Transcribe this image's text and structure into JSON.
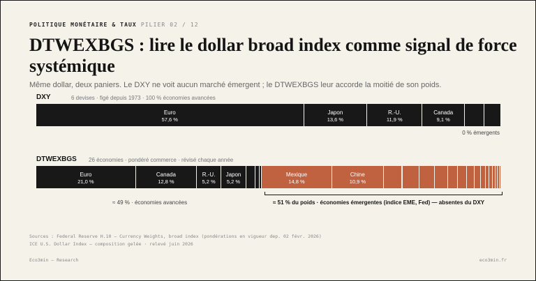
{
  "header": {
    "kicker": "POLITIQUE MONÉTAIRE & TAUX",
    "pillar": "PILIER 02 / 12",
    "title": "DTWEXBGS : lire le dollar broad index comme signal de force systémique",
    "subtitle": "Même dollar, deux paniers. Le DXY ne voit aucun marché émergent ; le DTWEXBGS leur accorde la moitié de son poids."
  },
  "colors": {
    "advanced": "#181818",
    "emerging": "#c0623f",
    "background": "#f5f2ea"
  },
  "chart_data": [
    {
      "type": "bar",
      "subtype": "stacked-100",
      "name": "DXY",
      "meta": "6 devises · figé depuis 1973 · 100 % économies avancées",
      "segments": [
        {
          "name": "Euro",
          "value": 57.6,
          "label": "57,6 %",
          "group": "advanced"
        },
        {
          "name": "Japon",
          "value": 13.6,
          "label": "13,6 %",
          "group": "advanced"
        },
        {
          "name": "R.-U.",
          "value": 11.9,
          "label": "11,9 %",
          "group": "advanced"
        },
        {
          "name": "Canada",
          "value": 9.1,
          "label": "9,1 %",
          "group": "advanced"
        },
        {
          "name": "",
          "value": 4.2,
          "label": "",
          "group": "advanced"
        },
        {
          "name": "",
          "value": 3.6,
          "label": "",
          "group": "advanced"
        }
      ],
      "annotation": "0 % émergents"
    },
    {
      "type": "bar",
      "subtype": "stacked-100",
      "name": "DTWEXBGS",
      "meta": "26 économies · pondéré commerce · révisé chaque année",
      "segments": [
        {
          "name": "Euro",
          "value": 21.0,
          "label": "21,0 %",
          "group": "advanced"
        },
        {
          "name": "Canada",
          "value": 12.8,
          "label": "12,8 %",
          "group": "advanced"
        },
        {
          "name": "R.-U.",
          "value": 5.2,
          "label": "5,2 %",
          "group": "advanced"
        },
        {
          "name": "Japon",
          "value": 5.2,
          "label": "5,2 %",
          "group": "advanced"
        },
        {
          "name": "",
          "value": 1.9,
          "label": "",
          "group": "advanced"
        },
        {
          "name": "",
          "value": 1.0,
          "label": "",
          "group": "advanced"
        },
        {
          "name": "",
          "value": 0.4,
          "label": "",
          "group": "advanced"
        },
        {
          "name": "Mexique",
          "value": 14.8,
          "label": "14,8 %",
          "group": "emerging"
        },
        {
          "name": "Chine",
          "value": 10.9,
          "label": "10,9 %",
          "group": "emerging"
        },
        {
          "name": "",
          "value": 3.9,
          "label": "",
          "group": "emerging"
        },
        {
          "name": "",
          "value": 3.6,
          "label": "",
          "group": "emerging"
        },
        {
          "name": "",
          "value": 3.3,
          "label": "",
          "group": "emerging"
        },
        {
          "name": "",
          "value": 2.7,
          "label": "",
          "group": "emerging"
        },
        {
          "name": "",
          "value": 2.1,
          "label": "",
          "group": "emerging"
        },
        {
          "name": "",
          "value": 1.9,
          "label": "",
          "group": "emerging"
        },
        {
          "name": "",
          "value": 1.6,
          "label": "",
          "group": "emerging"
        },
        {
          "name": "",
          "value": 1.3,
          "label": "",
          "group": "emerging"
        },
        {
          "name": "",
          "value": 1.0,
          "label": "",
          "group": "emerging"
        },
        {
          "name": "",
          "value": 0.8,
          "label": "",
          "group": "emerging"
        },
        {
          "name": "",
          "value": 0.7,
          "label": "",
          "group": "emerging"
        },
        {
          "name": "",
          "value": 0.6,
          "label": "",
          "group": "emerging"
        },
        {
          "name": "",
          "value": 0.5,
          "label": "",
          "group": "emerging"
        },
        {
          "name": "",
          "value": 0.4,
          "label": "",
          "group": "emerging"
        },
        {
          "name": "",
          "value": 0.3,
          "label": "",
          "group": "emerging"
        }
      ],
      "annotation_advanced": "≈ 49 % · économies avancées",
      "annotation_emerging": "≈ 51 % du poids · économies émergentes (indice EME, Fed) — absentes du DXY"
    }
  ],
  "sources": [
    "Sources : Federal Reserve H.10 — Currency Weights, broad index (pondérations en vigueur dep. 02 févr. 2026)",
    "ICE U.S. Dollar Index — composition gelée · relevé juin 2026"
  ],
  "footer": {
    "left": "Eco3min — Research",
    "right": "eco3min.fr"
  }
}
